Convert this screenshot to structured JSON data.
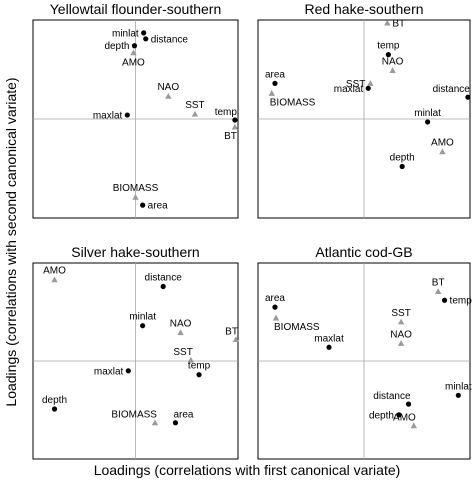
{
  "figure": {
    "xlabel": "Loadings (correlations with first canonical variate)",
    "ylabel": "Loadings (correlations with second canonical variate)"
  },
  "legend": {
    "circle_color": "#000000",
    "triangle_color": "#9a9a9a"
  },
  "chart_data": [
    {
      "type": "scatter",
      "title": "Yellowtail flounder-southern",
      "xlim": [
        -1,
        1
      ],
      "ylim": [
        -1,
        1
      ],
      "points": [
        {
          "label": "minlat",
          "x": 0.08,
          "y": 0.87,
          "marker": "circle",
          "label_pos": "left"
        },
        {
          "label": "distance",
          "x": 0.1,
          "y": 0.81,
          "marker": "circle",
          "label_pos": "right"
        },
        {
          "label": "depth",
          "x": -0.01,
          "y": 0.74,
          "marker": "circle",
          "label_pos": "left"
        },
        {
          "label": "AMO",
          "x": -0.02,
          "y": 0.67,
          "marker": "triangle",
          "label_pos": "below"
        },
        {
          "label": "NAO",
          "x": 0.32,
          "y": 0.23,
          "marker": "triangle",
          "label_pos": "above"
        },
        {
          "label": "maxlat",
          "x": -0.08,
          "y": 0.04,
          "marker": "circle",
          "label_pos": "left"
        },
        {
          "label": "SST",
          "x": 0.58,
          "y": 0.05,
          "marker": "triangle",
          "label_pos": "above"
        },
        {
          "label": "temp",
          "x": 0.97,
          "y": -0.01,
          "marker": "circle",
          "label_pos": "above-left"
        },
        {
          "label": "BT",
          "x": 0.97,
          "y": -0.08,
          "marker": "triangle",
          "label_pos": "below-left"
        },
        {
          "label": "BIOMASS",
          "x": 0.0,
          "y": -0.79,
          "marker": "triangle",
          "label_pos": "above"
        },
        {
          "label": "area",
          "x": 0.07,
          "y": -0.87,
          "marker": "circle",
          "label_pos": "right"
        }
      ]
    },
    {
      "type": "scatter",
      "title": "Red hake-southern",
      "xlim": [
        -1,
        1
      ],
      "ylim": [
        -1,
        1
      ],
      "points": [
        {
          "label": "BT",
          "x": 0.22,
          "y": 0.97,
          "marker": "triangle",
          "label_pos": "right"
        },
        {
          "label": "temp",
          "x": 0.23,
          "y": 0.65,
          "marker": "circle",
          "label_pos": "above"
        },
        {
          "label": "NAO",
          "x": 0.27,
          "y": 0.49,
          "marker": "triangle",
          "label_pos": "above"
        },
        {
          "label": "SST",
          "x": 0.06,
          "y": 0.36,
          "marker": "triangle",
          "label_pos": "left"
        },
        {
          "label": "maxlat",
          "x": 0.04,
          "y": 0.31,
          "marker": "circle",
          "label_pos": "left"
        },
        {
          "label": "area",
          "x": -0.84,
          "y": 0.36,
          "marker": "circle",
          "label_pos": "above"
        },
        {
          "label": "BIOMASS",
          "x": -0.87,
          "y": 0.26,
          "marker": "triangle",
          "label_pos": "below-right"
        },
        {
          "label": "distance",
          "x": 0.98,
          "y": 0.22,
          "marker": "circle",
          "label_pos": "above-left"
        },
        {
          "label": "minlat",
          "x": 0.6,
          "y": -0.03,
          "marker": "circle",
          "label_pos": "above"
        },
        {
          "label": "AMO",
          "x": 0.74,
          "y": -0.33,
          "marker": "triangle",
          "label_pos": "above"
        },
        {
          "label": "depth",
          "x": 0.36,
          "y": -0.48,
          "marker": "circle",
          "label_pos": "above"
        }
      ]
    },
    {
      "type": "scatter",
      "title": "Silver hake-southern",
      "xlim": [
        -1,
        1
      ],
      "ylim": [
        -1,
        1
      ],
      "points": [
        {
          "label": "AMO",
          "x": -0.79,
          "y": 0.83,
          "marker": "triangle",
          "label_pos": "above"
        },
        {
          "label": "distance",
          "x": 0.27,
          "y": 0.76,
          "marker": "circle",
          "label_pos": "above"
        },
        {
          "label": "minlat",
          "x": 0.07,
          "y": 0.36,
          "marker": "circle",
          "label_pos": "above"
        },
        {
          "label": "NAO",
          "x": 0.44,
          "y": 0.29,
          "marker": "triangle",
          "label_pos": "above"
        },
        {
          "label": "BT",
          "x": 0.98,
          "y": 0.22,
          "marker": "triangle",
          "label_pos": "above-left"
        },
        {
          "label": "SST",
          "x": 0.54,
          "y": 0.01,
          "marker": "triangle",
          "label_pos": "above-left"
        },
        {
          "label": "temp",
          "x": 0.62,
          "y": -0.14,
          "marker": "circle",
          "label_pos": "above"
        },
        {
          "label": "maxlat",
          "x": -0.07,
          "y": -0.1,
          "marker": "circle",
          "label_pos": "left"
        },
        {
          "label": "depth",
          "x": -0.79,
          "y": -0.49,
          "marker": "circle",
          "label_pos": "above"
        },
        {
          "label": "BIOMASS",
          "x": 0.19,
          "y": -0.63,
          "marker": "triangle",
          "label_pos": "above-left"
        },
        {
          "label": "area",
          "x": 0.39,
          "y": -0.63,
          "marker": "circle",
          "label_pos": "above-right"
        }
      ]
    },
    {
      "type": "scatter",
      "title": "Atlantic cod-GB",
      "xlim": [
        -1,
        1
      ],
      "ylim": [
        -1,
        1
      ],
      "points": [
        {
          "label": "BT",
          "x": 0.7,
          "y": 0.71,
          "marker": "triangle",
          "label_pos": "above"
        },
        {
          "label": "temp",
          "x": 0.76,
          "y": 0.62,
          "marker": "circle",
          "label_pos": "right"
        },
        {
          "label": "area",
          "x": -0.84,
          "y": 0.55,
          "marker": "circle",
          "label_pos": "above"
        },
        {
          "label": "BIOMASS",
          "x": -0.83,
          "y": 0.44,
          "marker": "triangle",
          "label_pos": "below-right"
        },
        {
          "label": "SST",
          "x": 0.35,
          "y": 0.4,
          "marker": "triangle",
          "label_pos": "above"
        },
        {
          "label": "maxlat",
          "x": -0.33,
          "y": 0.14,
          "marker": "circle",
          "label_pos": "above"
        },
        {
          "label": "NAO",
          "x": 0.35,
          "y": 0.18,
          "marker": "triangle",
          "label_pos": "above"
        },
        {
          "label": "minlat",
          "x": 0.89,
          "y": -0.35,
          "marker": "circle",
          "label_pos": "above"
        },
        {
          "label": "distance",
          "x": 0.42,
          "y": -0.44,
          "marker": "circle",
          "label_pos": "above-left"
        },
        {
          "label": "depth",
          "x": 0.33,
          "y": -0.55,
          "marker": "circle",
          "label_pos": "left"
        },
        {
          "label": "AMO",
          "x": 0.47,
          "y": -0.66,
          "marker": "triangle",
          "label_pos": "above-left"
        }
      ]
    }
  ]
}
